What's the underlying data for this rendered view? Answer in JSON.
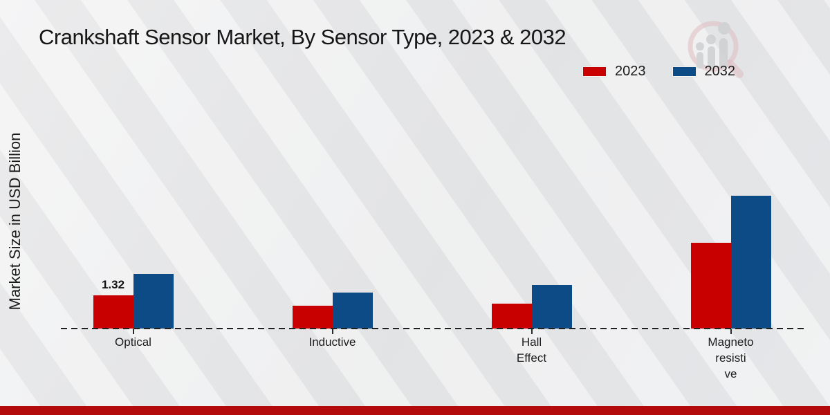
{
  "title": "Crankshaft Sensor Market, By Sensor Type, 2023 & 2032",
  "ylabel": "Market Size in USD Billion",
  "legend": [
    {
      "label": "2023",
      "color": "#c80000"
    },
    {
      "label": "2032",
      "color": "#0d4b87"
    }
  ],
  "colors": {
    "series_2023": "#c80000",
    "series_2032": "#0d4b87",
    "footer_band": "#b30b0b",
    "axis_line": "#1f1f1f",
    "background": "#e9eaeb"
  },
  "watermark_icon": "magnifier-bar-chart-logo",
  "chart_data": {
    "type": "bar",
    "categories": [
      "Optical",
      "Inductive",
      "Hall Effect",
      "Magnetoresistive"
    ],
    "category_display_lines": [
      [
        "Optical"
      ],
      [
        "Inductive"
      ],
      [
        "Hall",
        "Effect"
      ],
      [
        "Magneto",
        "resisti",
        "ve"
      ]
    ],
    "series": [
      {
        "name": "2023",
        "color": "#c80000",
        "values": [
          1.32,
          0.9,
          1.0,
          3.4
        ]
      },
      {
        "name": "2032",
        "color": "#0d4b87",
        "values": [
          2.17,
          1.43,
          1.73,
          5.28
        ]
      }
    ],
    "data_labels": [
      {
        "series_index": 0,
        "category_index": 0,
        "text": "1.32"
      }
    ],
    "title": "Crankshaft Sensor Market, By Sensor Type, 2023 & 2032",
    "xlabel": "",
    "ylabel": "Market Size in USD Billion",
    "ylim": [
      0,
      6
    ],
    "grid": false,
    "legend_position": "top-right",
    "baseline_style": "dashed",
    "y_axis_ticks_shown": false
  }
}
